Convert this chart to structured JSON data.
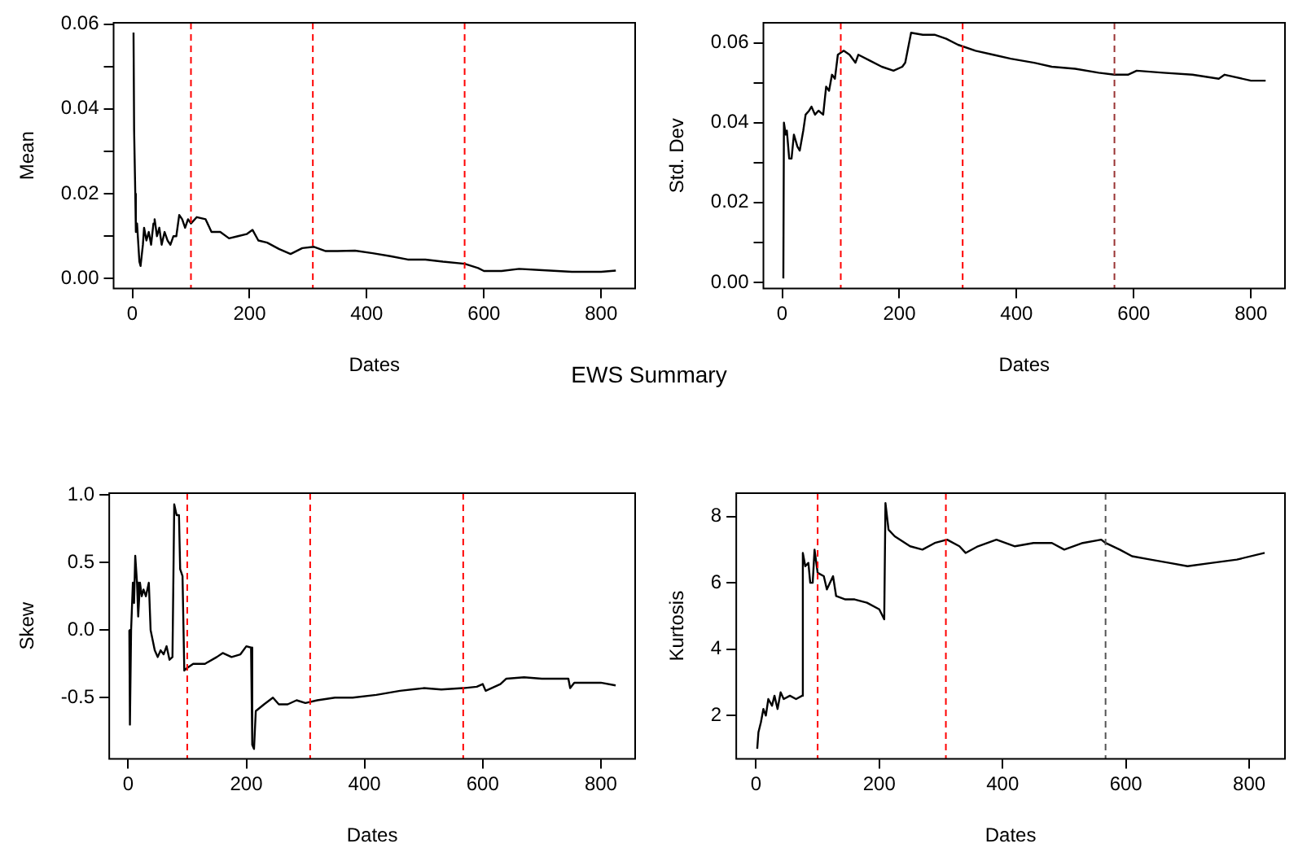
{
  "chart_data": [
    {
      "type": "line",
      "title": "EWS Summary",
      "xlabel": "Dates",
      "ylabel": "Mean",
      "xlim": [
        -32,
        858
      ],
      "xticks": [
        0,
        200,
        400,
        600,
        800
      ],
      "ylim": [
        -0.0023,
        0.0603
      ],
      "yticks": [
        {
          "value": 0,
          "label": "0.00"
        },
        {
          "value": 0.01,
          "label": null
        },
        {
          "value": 0.02,
          "label": "0.02"
        },
        {
          "value": 0.03,
          "label": null
        },
        {
          "value": 0.04,
          "label": "0.04"
        },
        {
          "value": 0.05,
          "label": null
        },
        {
          "value": 0.06,
          "label": "0.06"
        }
      ],
      "grid": false,
      "ref_lines": [
        {
          "axis": "x",
          "value": 100,
          "color": "#ff0000",
          "line_style": "dashed"
        },
        {
          "axis": "x",
          "value": 308,
          "color": "#ff0000",
          "line_style": "dashed"
        },
        {
          "axis": "x",
          "value": 567,
          "color": "#ff0000",
          "line_style": "dashed"
        }
      ],
      "series": [
        {
          "color": "#000000",
          "x": [
            2,
            3,
            5,
            6,
            8,
            12,
            14,
            18,
            20,
            24,
            28,
            32,
            36,
            38,
            42,
            46,
            50,
            55,
            60,
            65,
            70,
            75,
            80,
            85,
            90,
            95,
            100,
            110,
            125,
            135,
            150,
            165,
            180,
            195,
            205,
            215,
            230,
            250,
            270,
            290,
            310,
            330,
            350,
            380,
            410,
            440,
            470,
            500,
            530,
            567,
            590,
            600,
            630,
            660,
            700,
            750,
            800,
            825
          ],
          "values": [
            0.058,
            0.035,
            0.02,
            0.011,
            0.013,
            0.004,
            0.003,
            0.008,
            0.012,
            0.009,
            0.011,
            0.008,
            0.013,
            0.014,
            0.01,
            0.012,
            0.008,
            0.011,
            0.009,
            0.008,
            0.01,
            0.01,
            0.015,
            0.014,
            0.012,
            0.014,
            0.013,
            0.0145,
            0.014,
            0.011,
            0.011,
            0.0095,
            0.01,
            0.0105,
            0.0115,
            0.009,
            0.0085,
            0.007,
            0.0058,
            0.0072,
            0.0075,
            0.0065,
            0.0065,
            0.0066,
            0.006,
            0.0053,
            0.0045,
            0.0045,
            0.004,
            0.0035,
            0.0025,
            0.0018,
            0.0018,
            0.0023,
            0.002,
            0.0016,
            0.0016,
            0.0019
          ]
        }
      ]
    },
    {
      "type": "line",
      "xlabel": "Dates",
      "ylabel": "Std. Dev",
      "xlim": [
        -32,
        858
      ],
      "xticks": [
        0,
        200,
        400,
        600,
        800
      ],
      "ylim": [
        -0.0015,
        0.065
      ],
      "yticks": [
        {
          "value": 0,
          "label": "0.00"
        },
        {
          "value": 0.01,
          "label": null
        },
        {
          "value": 0.02,
          "label": "0.02"
        },
        {
          "value": 0.03,
          "label": null
        },
        {
          "value": 0.04,
          "label": "0.04"
        },
        {
          "value": 0.05,
          "label": null
        },
        {
          "value": 0.06,
          "label": "0.06"
        }
      ],
      "grid": false,
      "ref_lines": [
        {
          "axis": "x",
          "value": 100,
          "color": "#ff0000",
          "line_style": "dashed"
        },
        {
          "axis": "x",
          "value": 308,
          "color": "#ff0000",
          "line_style": "dashed"
        },
        {
          "axis": "x",
          "value": 567,
          "color": "#993333",
          "line_style": "dashed"
        }
      ],
      "series": [
        {
          "color": "#000000",
          "x": [
            2,
            3,
            6,
            8,
            12,
            16,
            20,
            26,
            30,
            36,
            40,
            46,
            50,
            56,
            62,
            70,
            75,
            80,
            85,
            90,
            95,
            105,
            115,
            125,
            130,
            150,
            170,
            190,
            205,
            210,
            220,
            240,
            260,
            280,
            300,
            330,
            360,
            390,
            430,
            460,
            500,
            540,
            567,
            590,
            605,
            650,
            700,
            745,
            755,
            800,
            825
          ],
          "values": [
            0.001,
            0.04,
            0.037,
            0.038,
            0.031,
            0.031,
            0.037,
            0.034,
            0.033,
            0.038,
            0.042,
            0.043,
            0.044,
            0.042,
            0.043,
            0.042,
            0.049,
            0.048,
            0.052,
            0.051,
            0.057,
            0.058,
            0.057,
            0.055,
            0.057,
            0.0555,
            0.054,
            0.053,
            0.054,
            0.055,
            0.0625,
            0.062,
            0.062,
            0.061,
            0.0595,
            0.058,
            0.057,
            0.056,
            0.055,
            0.054,
            0.0535,
            0.0525,
            0.052,
            0.052,
            0.053,
            0.0525,
            0.052,
            0.051,
            0.052,
            0.0505,
            0.0505
          ]
        }
      ]
    },
    {
      "type": "line",
      "xlabel": "Dates",
      "ylabel": "Skew",
      "xlim": [
        -32,
        858
      ],
      "xticks": [
        0,
        200,
        400,
        600,
        800
      ],
      "ylim": [
        -0.953,
        1.013
      ],
      "yticks": [
        {
          "value": -0.5,
          "label": "-0.5"
        },
        {
          "value": 0,
          "label": "0.0"
        },
        {
          "value": 0.5,
          "label": "0.5"
        },
        {
          "value": 1,
          "label": "1.0"
        }
      ],
      "grid": false,
      "ref_lines": [
        {
          "axis": "x",
          "value": 100,
          "color": "#ff0000",
          "line_style": "dashed"
        },
        {
          "axis": "x",
          "value": 308,
          "color": "#ff0000",
          "line_style": "dashed"
        },
        {
          "axis": "x",
          "value": 567,
          "color": "#ff0000",
          "line_style": "dashed"
        }
      ],
      "series": [
        {
          "color": "#000000",
          "x": [
            2,
            3,
            5,
            8,
            10,
            12,
            15,
            17,
            20,
            23,
            26,
            30,
            35,
            38,
            45,
            50,
            55,
            60,
            65,
            70,
            75,
            78,
            82,
            86,
            88,
            92,
            95,
            100,
            110,
            130,
            150,
            160,
            175,
            190,
            200,
            208,
            210,
            213,
            216,
            230,
            245,
            255,
            270,
            285,
            300,
            320,
            350,
            380,
            420,
            460,
            500,
            530,
            567,
            590,
            600,
            605,
            630,
            640,
            670,
            700,
            745,
            748,
            755,
            800,
            825
          ],
          "values": [
            0.0,
            -0.7,
            0.0,
            0.35,
            0.2,
            0.55,
            0.35,
            0.1,
            0.35,
            0.25,
            0.3,
            0.25,
            0.35,
            0.0,
            -0.15,
            -0.2,
            -0.15,
            -0.18,
            -0.12,
            -0.22,
            -0.2,
            0.93,
            0.85,
            0.85,
            0.45,
            0.4,
            -0.3,
            -0.28,
            -0.25,
            -0.25,
            -0.2,
            -0.17,
            -0.2,
            -0.18,
            -0.12,
            -0.13,
            -0.85,
            -0.88,
            -0.6,
            -0.55,
            -0.5,
            -0.55,
            -0.55,
            -0.52,
            -0.54,
            -0.52,
            -0.5,
            -0.5,
            -0.48,
            -0.45,
            -0.43,
            -0.44,
            -0.43,
            -0.42,
            -0.4,
            -0.45,
            -0.4,
            -0.36,
            -0.35,
            -0.36,
            -0.36,
            -0.43,
            -0.39,
            -0.39,
            -0.41
          ]
        }
      ]
    },
    {
      "type": "line",
      "xlabel": "Dates",
      "ylabel": "Kurtosis",
      "xlim": [
        -32,
        858
      ],
      "xticks": [
        0,
        200,
        400,
        600,
        800
      ],
      "ylim": [
        0.7,
        8.7
      ],
      "yticks": [
        2,
        4,
        6,
        8
      ],
      "grid": false,
      "ref_lines": [
        {
          "axis": "x",
          "value": 100,
          "color": "#ff0000",
          "line_style": "dashed"
        },
        {
          "axis": "x",
          "value": 308,
          "color": "#ff0000",
          "line_style": "dashed"
        },
        {
          "axis": "x",
          "value": 567,
          "color": "#555555",
          "line_style": "dashed"
        }
      ],
      "series": [
        {
          "color": "#000000",
          "x": [
            2,
            4,
            8,
            12,
            16,
            20,
            26,
            30,
            35,
            40,
            45,
            55,
            65,
            75,
            76,
            80,
            85,
            88,
            92,
            95,
            100,
            110,
            115,
            125,
            130,
            145,
            160,
            180,
            200,
            208,
            210,
            215,
            225,
            250,
            270,
            290,
            310,
            330,
            340,
            360,
            390,
            420,
            450,
            480,
            500,
            530,
            560,
            567,
            590,
            610,
            640,
            670,
            700,
            740,
            780,
            825
          ],
          "values": [
            1.0,
            1.5,
            1.8,
            2.2,
            2.0,
            2.5,
            2.3,
            2.6,
            2.2,
            2.7,
            2.5,
            2.6,
            2.5,
            2.6,
            6.9,
            6.5,
            6.6,
            6.0,
            6.0,
            7.0,
            6.3,
            6.2,
            5.8,
            6.2,
            5.6,
            5.5,
            5.5,
            5.4,
            5.2,
            4.9,
            8.4,
            7.6,
            7.4,
            7.1,
            7.0,
            7.2,
            7.3,
            7.1,
            6.9,
            7.1,
            7.3,
            7.1,
            7.2,
            7.2,
            7.0,
            7.2,
            7.3,
            7.2,
            7.0,
            6.8,
            6.7,
            6.6,
            6.5,
            6.6,
            6.7,
            6.9
          ]
        }
      ]
    }
  ]
}
